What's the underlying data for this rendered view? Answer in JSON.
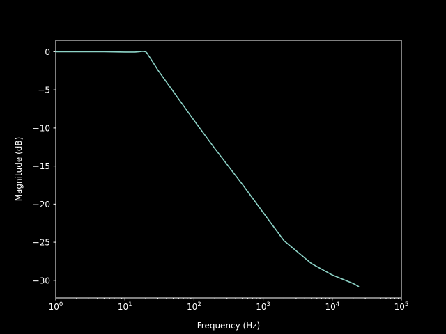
{
  "chart_data": {
    "type": "line",
    "title": "",
    "xlabel": "Frequency (Hz)",
    "ylabel": "Magnitude (dB)",
    "xscale": "log",
    "xlim": [
      1,
      100000
    ],
    "ylim": [
      -32.3,
      1.5
    ],
    "x_ticks": [
      1,
      10,
      100,
      1000,
      10000,
      100000
    ],
    "x_tick_labels": [
      {
        "base": "10",
        "exp": "0"
      },
      {
        "base": "10",
        "exp": "1"
      },
      {
        "base": "10",
        "exp": "2"
      },
      {
        "base": "10",
        "exp": "3"
      },
      {
        "base": "10",
        "exp": "4"
      },
      {
        "base": "10",
        "exp": "5"
      }
    ],
    "y_ticks": [
      0,
      -5,
      -10,
      -15,
      -20,
      -25,
      -30
    ],
    "y_tick_labels": [
      "0",
      "−5",
      "−10",
      "−15",
      "−20",
      "−25",
      "−30"
    ],
    "grid": false,
    "colors": {
      "background": "#000000",
      "axes": "#ffffff",
      "line": "#8dd3c7"
    },
    "series": [
      {
        "x": [
          1,
          2,
          5,
          10,
          14,
          16,
          18,
          20,
          21,
          22,
          24,
          30,
          50,
          100,
          200,
          500,
          1000,
          2000,
          5000,
          10000,
          20000,
          24000
        ],
        "y": [
          0,
          0,
          0,
          -0.05,
          -0.05,
          0,
          0.05,
          0,
          -0.2,
          -0.5,
          -1.0,
          -2.4,
          -5.2,
          -9.0,
          -12.7,
          -17.4,
          -21.1,
          -24.8,
          -27.8,
          -29.3,
          -30.4,
          -30.8
        ]
      }
    ]
  }
}
